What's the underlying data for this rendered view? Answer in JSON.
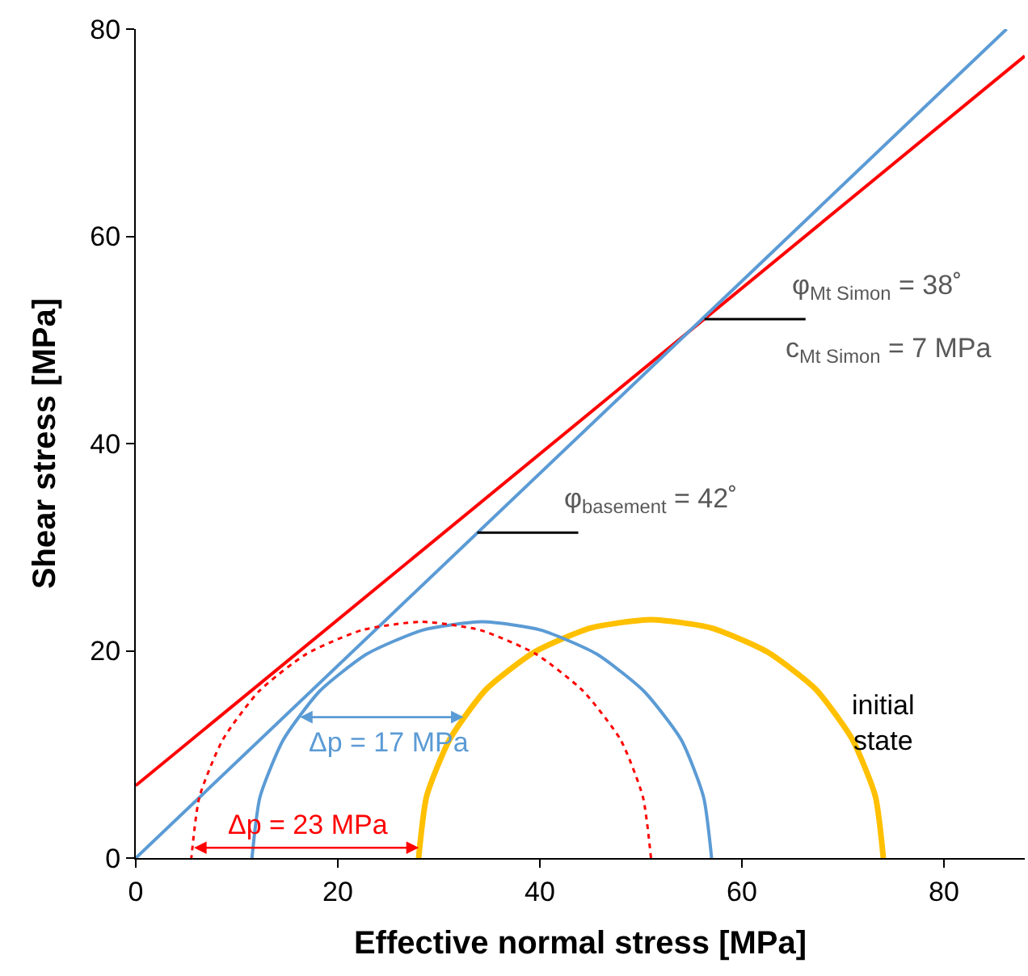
{
  "chart_data": {
    "type": "line",
    "xlabel": "Effective normal stress [MPa]",
    "ylabel": "Shear stress [MPa]",
    "xlim": [
      0,
      88
    ],
    "ylim": [
      0,
      80
    ],
    "xticks": [
      0,
      20,
      40,
      60,
      80
    ],
    "yticks": [
      0,
      20,
      40,
      60,
      80
    ],
    "marker": "none",
    "series": [
      {
        "color": "#ff0000",
        "x": [
          0,
          88
        ],
        "values": [
          7,
          77.4
        ]
      },
      {
        "color": "#5b9bd5",
        "x": [
          0,
          86.2
        ],
        "values": [
          0,
          80
        ]
      },
      {
        "color": "#ffc000",
        "x": [
          74,
          73.2,
          70.9,
          67.3,
          62.5,
          57.0,
          51,
          45.0,
          39.5,
          34.7,
          31.1,
          28.8,
          28
        ],
        "values": [
          0,
          6.0,
          11.5,
          16.3,
          19.9,
          22.2,
          23,
          22.2,
          19.9,
          16.3,
          11.5,
          6.0,
          0
        ]
      },
      {
        "color": "#5b9bd5",
        "x": [
          57.0,
          56.2,
          54.0,
          50.3,
          45.6,
          40.1,
          34.3,
          28.4,
          22.9,
          18.2,
          14.6,
          12.3,
          11.5
        ],
        "values": [
          0,
          5.9,
          11.4,
          16.1,
          19.7,
          22.0,
          22.8,
          22.0,
          19.7,
          16.1,
          11.4,
          5.9,
          0
        ]
      },
      {
        "color": "#ff0000",
        "line_style": "dotted",
        "x": [
          51.0,
          50.2,
          48.0,
          44.3,
          39.6,
          34.1,
          28.3,
          22.4,
          16.9,
          12.2,
          8.6,
          6.3,
          5.5
        ],
        "values": [
          0,
          5.9,
          11.4,
          16.1,
          19.7,
          22.0,
          22.8,
          22.0,
          19.7,
          16.1,
          11.4,
          5.9,
          0
        ]
      }
    ],
    "annotations": [
      {
        "text": "φ$_{Mt Simon}$ = 38˚",
        "x": 56.3,
        "y": 52
      },
      "c$_{Mt Simon}$ = 7 MPa",
      {
        "text": "φ$_{basement}$ = 42˚",
        "x": 33.8,
        "y": 31.4
      },
      "Δp = 17 MPa",
      "Δp = 23 MPa",
      "initial\nstate"
    ]
  }
}
